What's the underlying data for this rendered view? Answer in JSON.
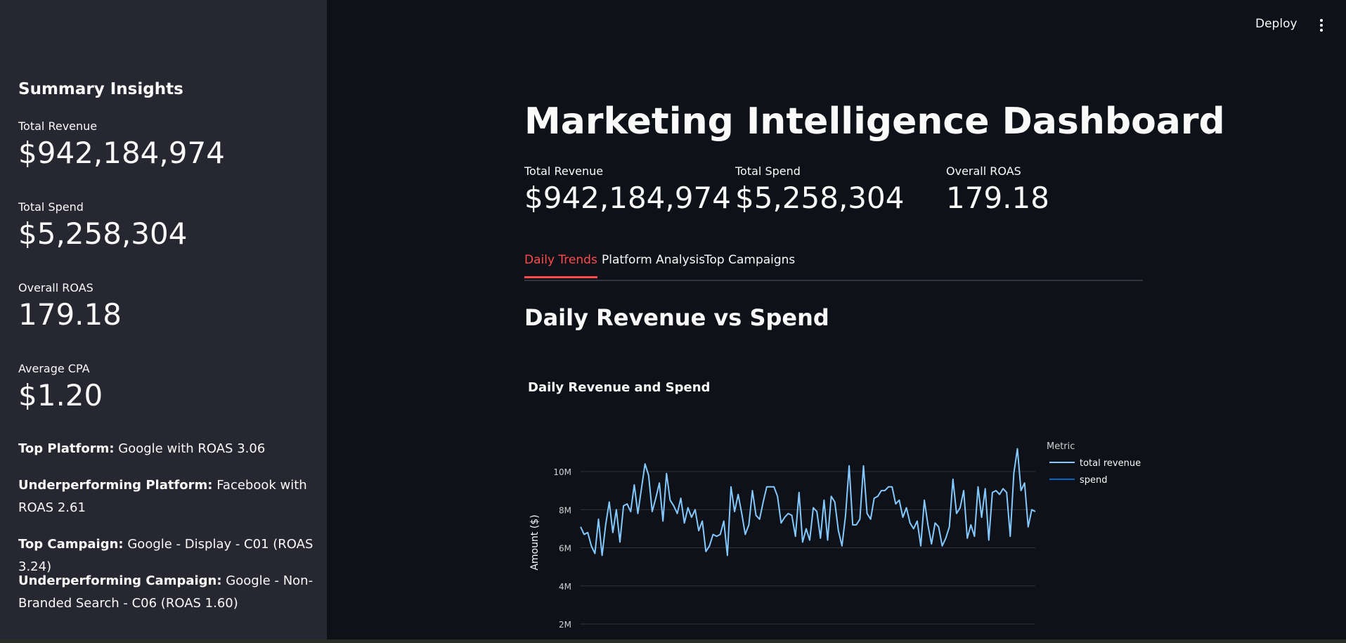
{
  "header": {
    "deploy_label": "Deploy"
  },
  "sidebar": {
    "title": "Summary Insights",
    "metrics": [
      {
        "label": "Total Revenue",
        "value": "$942,184,974"
      },
      {
        "label": "Total Spend",
        "value": "$5,258,304"
      },
      {
        "label": "Overall ROAS",
        "value": "179.18"
      },
      {
        "label": "Average CPA",
        "value": "$1.20"
      }
    ],
    "insights": [
      {
        "key": "Top Platform:",
        "text": "Google with ROAS 3.06"
      },
      {
        "key": "Underperforming Platform:",
        "text": "Facebook with ROAS 2.61"
      },
      {
        "key": "Top Campaign:",
        "text": "Google - Display - C01 (ROAS 3.24)"
      },
      {
        "key": "Underperforming Campaign:",
        "text": "Google - Non-Branded Search - C06 (ROAS 1.60)"
      }
    ]
  },
  "main": {
    "title": "Marketing Intelligence Dashboard",
    "metrics": [
      {
        "label": "Total Revenue",
        "value": "$942,184,974"
      },
      {
        "label": "Total Spend",
        "value": "$5,258,304"
      },
      {
        "label": "Overall ROAS",
        "value": "179.18"
      }
    ],
    "tabs": [
      {
        "label": "Daily Trends",
        "active": true
      },
      {
        "label": "Platform Analysis",
        "active": false
      },
      {
        "label": "Top Campaigns",
        "active": false
      }
    ],
    "section_title": "Daily Revenue vs Spend"
  },
  "chart_data": {
    "type": "line",
    "title": "Daily Revenue and Spend",
    "ylabel": "Amount ($)",
    "xlabel": "",
    "legend_title": "Metric",
    "legend_position": "top-right",
    "y_ticks": [
      "2M",
      "4M",
      "6M",
      "8M",
      "10M"
    ],
    "ylim": [
      1500000,
      12000000
    ],
    "grid": true,
    "series": [
      {
        "name": "total revenue",
        "color": "#83c9ff",
        "values": [
          7100000,
          6700000,
          6800000,
          6100000,
          5700000,
          7500000,
          5600000,
          7200000,
          8400000,
          6800000,
          8000000,
          6300000,
          8200000,
          8300000,
          7900000,
          9300000,
          7800000,
          9100000,
          10400000,
          9800000,
          7900000,
          8600000,
          9400000,
          7400000,
          9900000,
          8500000,
          8200000,
          7800000,
          8600000,
          7300000,
          8100000,
          7600000,
          8000000,
          6900000,
          7400000,
          5800000,
          6100000,
          6700000,
          6600000,
          6700000,
          7400000,
          5600000,
          9200000,
          7900000,
          8800000,
          7800000,
          6700000,
          7200000,
          9000000,
          7700000,
          7500000,
          8400000,
          9200000,
          9200000,
          9200000,
          8700000,
          7300000,
          7600000,
          7800000,
          7700000,
          6600000,
          8900000,
          6300000,
          7000000,
          6400000,
          8100000,
          7900000,
          6500000,
          8500000,
          6400000,
          8700000,
          8400000,
          6900000,
          6100000,
          7700000,
          10300000,
          7200000,
          7200000,
          7500000,
          10300000,
          7800000,
          7500000,
          8600000,
          8700000,
          9000000,
          9000000,
          9200000,
          9200000,
          8300000,
          8500000,
          7600000,
          8100000,
          7300000,
          7000000,
          7400000,
          6100000,
          8500000,
          7200000,
          6200000,
          7300000,
          7100000,
          6100000,
          6500000,
          7100000,
          9600000,
          7800000,
          8100000,
          9000000,
          6500000,
          7200000,
          6600000,
          9200000,
          7600000,
          9100000,
          6400000,
          8900000,
          9000000,
          8800000,
          9100000,
          8900000,
          6600000,
          9900000,
          11200000,
          9000000,
          9400000,
          7100000,
          8000000,
          7900000
        ]
      },
      {
        "name": "spend",
        "color": "#0068c9",
        "values": []
      }
    ]
  }
}
